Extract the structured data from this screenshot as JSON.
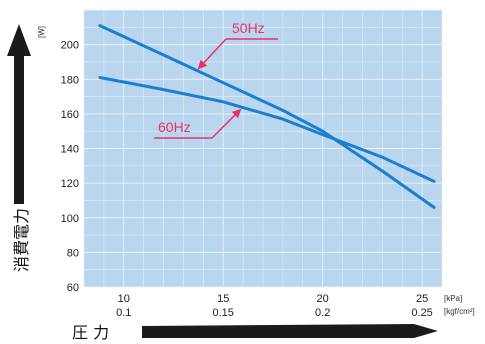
{
  "chart_data": {
    "type": "line",
    "ylabel": "消費電力",
    "xlabel": "圧 力",
    "y_unit": "[W]",
    "x_units": [
      "[kPa]",
      "[kgf/cm²]"
    ],
    "xlim": [
      8,
      26
    ],
    "ylim": [
      60,
      220
    ],
    "x_ticks": [
      10,
      15,
      20,
      25
    ],
    "x_ticks_secondary": [
      "0.1",
      "0.15",
      "0.2",
      "0.25"
    ],
    "y_ticks": [
      60,
      80,
      100,
      120,
      140,
      160,
      180,
      200
    ],
    "grid": true,
    "series": [
      {
        "name": "50Hz",
        "x": [
          8.8,
          12,
          15,
          18,
          20,
          23,
          25.6
        ],
        "y": [
          211,
          194,
          178,
          162,
          150,
          127,
          106
        ]
      },
      {
        "name": "60Hz",
        "x": [
          8.8,
          12,
          15,
          18,
          20,
          23,
          25.6
        ],
        "y": [
          181,
          174,
          167,
          157,
          148,
          135,
          121
        ]
      }
    ],
    "colors": {
      "plot_bg": "#b9d6ee",
      "grid": "#e6f1fa",
      "line": "#1a7fd0",
      "label": "#e8306c",
      "arrow": "#1b1b1b"
    }
  }
}
